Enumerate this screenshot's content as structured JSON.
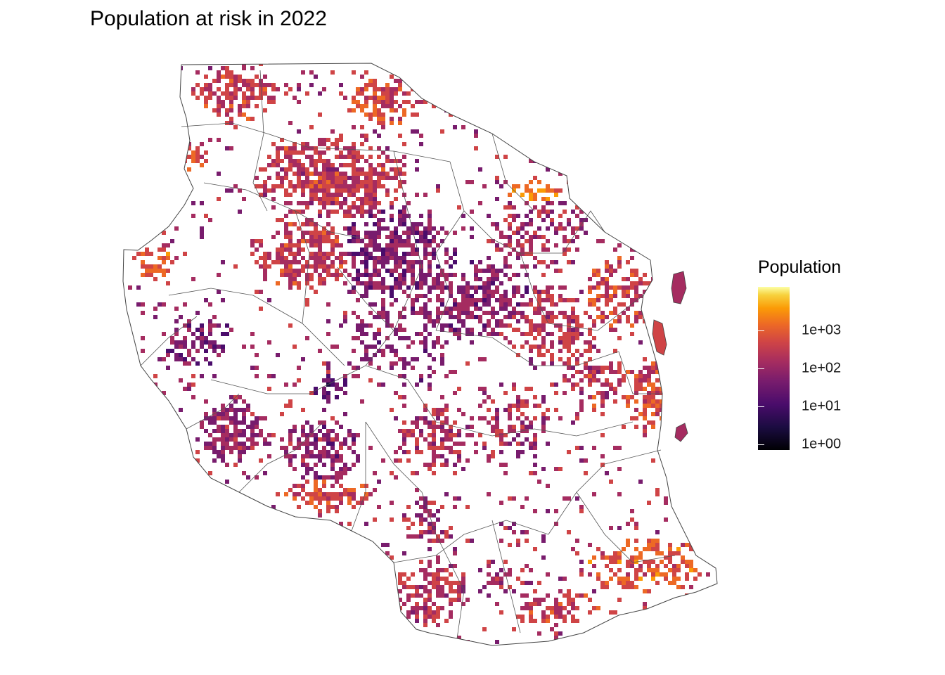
{
  "title": "Population at risk in 2022",
  "legend": {
    "title": "Population",
    "scale": "log10",
    "palette": "inferno",
    "colors": [
      "#000004",
      "#1b0c41",
      "#4a0c6b",
      "#781c6d",
      "#a52c60",
      "#cf4446",
      "#ed6925",
      "#fb9b06",
      "#f7d13d",
      "#fcffa4"
    ],
    "breaks": [
      {
        "label": "1e+00",
        "value": 1
      },
      {
        "label": "1e+01",
        "value": 10
      },
      {
        "label": "1e+02",
        "value": 100
      },
      {
        "label": "1e+03",
        "value": 1000
      }
    ]
  },
  "map": {
    "region": "Tanzania",
    "layers": [
      "population raster",
      "district boundaries"
    ],
    "boundary_color": "#555555",
    "background": "#ffffff"
  }
}
